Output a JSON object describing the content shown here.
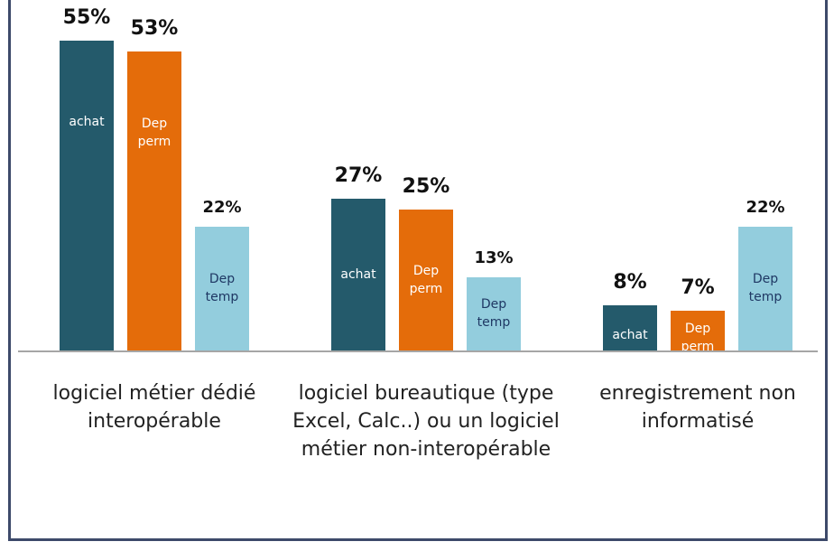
{
  "chart_data": {
    "type": "bar",
    "categories": [
      "logiciel métier dédié interopérable",
      "logiciel bureautique (type Excel, Calc..) ou un logiciel métier non-interopérable",
      "enregistrement non informatisé"
    ],
    "series": [
      {
        "name": "achat",
        "color": "#245a6b",
        "values": [
          55,
          27,
          8
        ],
        "value_labels": [
          "55%",
          "27%",
          "8%"
        ]
      },
      {
        "name": "Dep perm",
        "color": "#e46c0a",
        "values": [
          53,
          25,
          7
        ],
        "value_labels": [
          "53%",
          "25%",
          "7%"
        ]
      },
      {
        "name": "Dep temp",
        "color": "#93cddd",
        "values": [
          22,
          13,
          22
        ],
        "value_labels": [
          "22%",
          "13%",
          "22%"
        ]
      }
    ]
  }
}
